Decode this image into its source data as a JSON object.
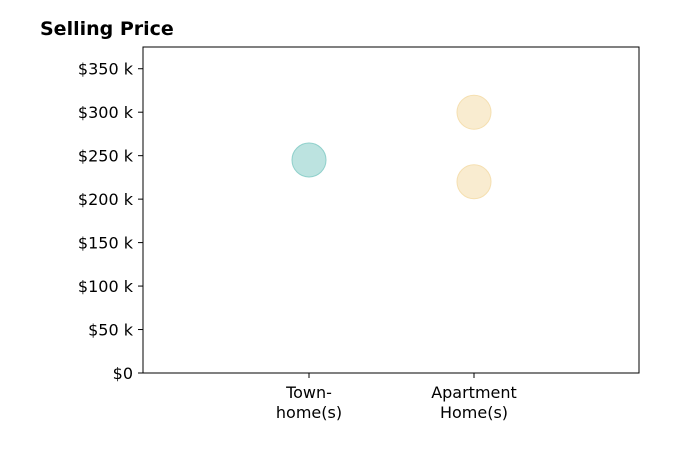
{
  "chart_data": {
    "type": "scatter",
    "title": "Selling Price",
    "xlabel": "",
    "ylabel": "",
    "categories": [
      {
        "label_lines": [
          "Town-",
          "home(s)"
        ]
      },
      {
        "label_lines": [
          "Apartment",
          "Home(s)"
        ]
      }
    ],
    "yticks": [
      {
        "value": 0,
        "label": "$0"
      },
      {
        "value": 50,
        "label": "$50 k"
      },
      {
        "value": 100,
        "label": "$100 k"
      },
      {
        "value": 150,
        "label": "$150 k"
      },
      {
        "value": 200,
        "label": "$200 k"
      },
      {
        "value": 250,
        "label": "$250 k"
      },
      {
        "value": 300,
        "label": "$300 k"
      },
      {
        "value": 350,
        "label": "$350 k"
      }
    ],
    "ylim": [
      0,
      375
    ],
    "unit": "thousands of dollars",
    "grid": false,
    "points": [
      {
        "category": 0,
        "y": 245,
        "color": "#8fd0cb"
      },
      {
        "category": 1,
        "y": 300,
        "color": "#f5dfb0"
      },
      {
        "category": 1,
        "y": 220,
        "color": "#f5dfb0"
      }
    ]
  }
}
